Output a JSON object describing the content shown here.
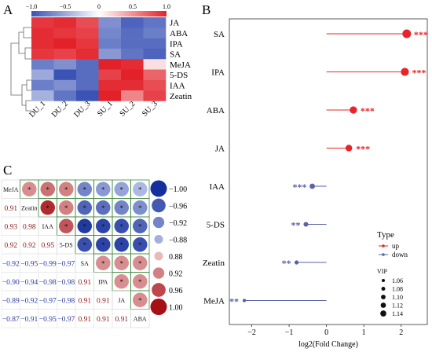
{
  "panel_labels": {
    "a": "A",
    "b": "B",
    "c": "C"
  },
  "colors": {
    "heat_low": "#3a53b5",
    "heat_mid": "#ffffff",
    "heat_high": "#e32129",
    "lollipop_up": "#e8242a",
    "lollipop_down": "#5a63a8",
    "corr_text_pos": "#8b1a1a",
    "corr_text_neg": "#2c3c9c",
    "corr_border": "#3e8a3e"
  },
  "chart_data": [
    {
      "type": "heatmap",
      "color_scale": {
        "min": -1.0,
        "max": 1.0,
        "tick_labels": [
          "−1.0",
          "−0.5",
          "0",
          "0.5",
          "1.0"
        ],
        "tick_values": [
          -1.0,
          -0.5,
          0,
          0.5,
          1.0
        ]
      },
      "rows": [
        "JA",
        "ABA",
        "IPA",
        "SA",
        "MeJA",
        "5-DS",
        "IAA",
        "Zeatin"
      ],
      "columns": [
        "DU_1",
        "DU_2",
        "DU_3",
        "SU_1",
        "SU_2",
        "SU_3"
      ],
      "values": [
        [
          0.9,
          0.95,
          0.8,
          -0.65,
          -0.9,
          -0.8
        ],
        [
          0.95,
          0.9,
          0.85,
          -0.7,
          -0.85,
          -0.75
        ],
        [
          0.95,
          1.0,
          0.9,
          -0.75,
          -0.85,
          -0.85
        ],
        [
          0.9,
          0.85,
          0.95,
          -0.6,
          -0.8,
          -0.9
        ],
        [
          -0.75,
          -0.65,
          -0.85,
          1.0,
          0.95,
          0.15
        ],
        [
          -0.5,
          -1.0,
          -0.85,
          0.85,
          1.0,
          0.7
        ],
        [
          -0.75,
          -0.65,
          -0.85,
          0.95,
          0.95,
          0.8
        ],
        [
          -0.45,
          -0.8,
          -1.0,
          1.0,
          0.55,
          0.85
        ]
      ]
    },
    {
      "type": "scatter",
      "subtype": "lollipop",
      "categories": [
        "SA",
        "IPA",
        "ABA",
        "JA",
        "IAA",
        "5-DS",
        "Zeatin",
        "MeJA"
      ],
      "values": [
        2.15,
        2.1,
        0.72,
        0.6,
        -0.38,
        -0.55,
        -0.8,
        -2.2
      ],
      "vip": [
        1.14,
        1.13,
        1.12,
        1.11,
        1.09,
        1.08,
        1.07,
        1.06
      ],
      "significance": [
        "***",
        "***",
        "***",
        "***",
        "***",
        "**",
        "**",
        "**"
      ],
      "direction": [
        "up",
        "up",
        "up",
        "up",
        "down",
        "down",
        "down",
        "down"
      ],
      "xlabel": "log2(Fold Change)",
      "xlim": [
        -2.6,
        2.7
      ],
      "xticks": [
        -2,
        -1,
        0,
        1,
        2
      ],
      "legend": {
        "type_title": "Type",
        "type_items": [
          "up",
          "down"
        ],
        "vip_title": "VIP",
        "vip_items": [
          "1.06",
          "1.08",
          "1.10",
          "1.12",
          "1.14"
        ]
      }
    },
    {
      "type": "heatmap",
      "subtype": "correlation-matrix",
      "variables": [
        "MeJA",
        "Zeatin",
        "IAA",
        "5-DS",
        "SA",
        "IPA",
        "JA",
        "ABA"
      ],
      "matrix": [
        [
          1.0,
          0.91,
          0.93,
          0.92,
          -0.92,
          -0.9,
          -0.89,
          -0.87
        ],
        [
          0.91,
          1.0,
          0.98,
          0.92,
          -0.95,
          -0.94,
          -0.92,
          -0.91
        ],
        [
          0.93,
          0.98,
          1.0,
          0.95,
          -0.99,
          -0.98,
          -0.97,
          -0.95
        ],
        [
          0.92,
          0.92,
          0.95,
          1.0,
          -0.97,
          -0.98,
          -0.98,
          -0.97
        ],
        [
          -0.92,
          -0.95,
          -0.99,
          -0.97,
          1.0,
          0.91,
          0.91,
          0.91
        ],
        [
          -0.9,
          -0.94,
          -0.98,
          -0.98,
          0.91,
          1.0,
          0.91,
          0.91
        ],
        [
          -0.89,
          -0.92,
          -0.97,
          -0.98,
          0.91,
          0.91,
          1.0,
          0.91
        ],
        [
          -0.87,
          -0.91,
          -0.95,
          -0.97,
          0.91,
          0.91,
          0.91,
          1.0
        ]
      ],
      "display": {
        "lower": [
          "0.91",
          "0.93",
          "0.98",
          "0.92",
          "0.92",
          "0.95",
          "−0.92",
          "−0.95",
          "−0.99",
          "−0.97",
          "−0.90",
          "−0.94",
          "−0.98",
          "−0.98",
          "0.91",
          "−0.89",
          "−0.92",
          "−0.97",
          "−0.98",
          "0.91",
          "0.91",
          "−0.87",
          "−0.91",
          "−0.95",
          "−0.97",
          "0.91",
          "0.91",
          "0.91"
        ]
      },
      "upper_marker": "*",
      "legend": {
        "values": [
          -1.0,
          -0.96,
          -0.92,
          -0.88,
          0.88,
          0.92,
          0.96,
          1.0
        ],
        "labels": [
          "−1.00",
          "−0.96",
          "−0.92",
          "−0.88",
          "0.88",
          "0.92",
          "0.96",
          "1.00"
        ]
      }
    }
  ]
}
